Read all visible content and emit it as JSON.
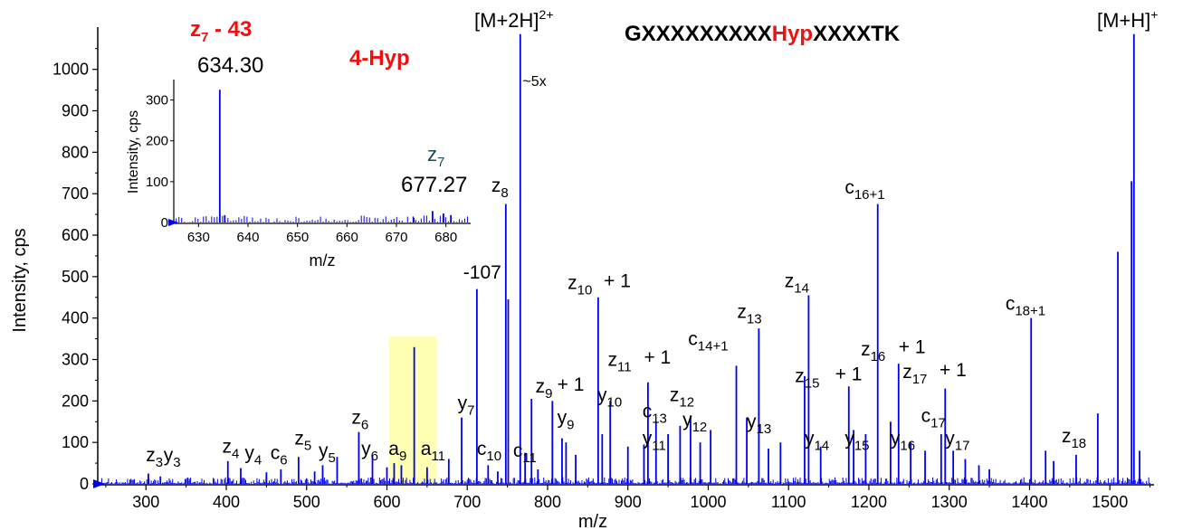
{
  "chart_data": [
    {
      "type": "bar",
      "role": "main-spectrum",
      "xlabel": "m/z",
      "ylabel": "Intensity, cps",
      "xlim": [
        240,
        1555
      ],
      "ylim": [
        0,
        1080
      ],
      "x_ticks": [
        300,
        400,
        500,
        600,
        700,
        800,
        900,
        1000,
        1100,
        1200,
        1300,
        1400,
        1500
      ],
      "y_ticks": [
        0,
        100,
        200,
        300,
        400,
        500,
        600,
        700,
        800,
        900,
        1000
      ],
      "bar_color": "#0000ee",
      "highlight": {
        "x_range": [
          603,
          662
        ],
        "y_top": 355,
        "color": "#ffffb3"
      },
      "peaks": [
        {
          "x": 303,
          "y": 25
        },
        {
          "x": 318,
          "y": 18
        },
        {
          "x": 352,
          "y": 15
        },
        {
          "x": 402,
          "y": 55
        },
        {
          "x": 418,
          "y": 38
        },
        {
          "x": 450,
          "y": 28
        },
        {
          "x": 468,
          "y": 35
        },
        {
          "x": 490,
          "y": 65
        },
        {
          "x": 510,
          "y": 30
        },
        {
          "x": 520,
          "y": 45
        },
        {
          "x": 538,
          "y": 65
        },
        {
          "x": 565,
          "y": 125
        },
        {
          "x": 582,
          "y": 70
        },
        {
          "x": 600,
          "y": 40
        },
        {
          "x": 609,
          "y": 50
        },
        {
          "x": 618,
          "y": 45
        },
        {
          "x": 634,
          "y": 330
        },
        {
          "x": 650,
          "y": 40
        },
        {
          "x": 677,
          "y": 60
        },
        {
          "x": 693,
          "y": 160
        },
        {
          "x": 712,
          "y": 470
        },
        {
          "x": 726,
          "y": 45
        },
        {
          "x": 738,
          "y": 30
        },
        {
          "x": 748,
          "y": 675
        },
        {
          "x": 751,
          "y": 445
        },
        {
          "x": 766,
          "y": 1085
        },
        {
          "x": 772,
          "y": 75
        },
        {
          "x": 780,
          "y": 205
        },
        {
          "x": 788,
          "y": 35
        },
        {
          "x": 806,
          "y": 200
        },
        {
          "x": 818,
          "y": 110
        },
        {
          "x": 823,
          "y": 100
        },
        {
          "x": 835,
          "y": 70
        },
        {
          "x": 863,
          "y": 450
        },
        {
          "x": 868,
          "y": 120
        },
        {
          "x": 878,
          "y": 200
        },
        {
          "x": 900,
          "y": 90
        },
        {
          "x": 920,
          "y": 95
        },
        {
          "x": 925,
          "y": 245
        },
        {
          "x": 935,
          "y": 150
        },
        {
          "x": 950,
          "y": 120
        },
        {
          "x": 965,
          "y": 140
        },
        {
          "x": 978,
          "y": 165
        },
        {
          "x": 990,
          "y": 100
        },
        {
          "x": 1003,
          "y": 130
        },
        {
          "x": 1035,
          "y": 285
        },
        {
          "x": 1048,
          "y": 160
        },
        {
          "x": 1063,
          "y": 375
        },
        {
          "x": 1075,
          "y": 85
        },
        {
          "x": 1090,
          "y": 100
        },
        {
          "x": 1120,
          "y": 260
        },
        {
          "x": 1125,
          "y": 455
        },
        {
          "x": 1140,
          "y": 90
        },
        {
          "x": 1175,
          "y": 235
        },
        {
          "x": 1181,
          "y": 130
        },
        {
          "x": 1196,
          "y": 120
        },
        {
          "x": 1211,
          "y": 675
        },
        {
          "x": 1227,
          "y": 150
        },
        {
          "x": 1237,
          "y": 290
        },
        {
          "x": 1252,
          "y": 100
        },
        {
          "x": 1270,
          "y": 80
        },
        {
          "x": 1290,
          "y": 120
        },
        {
          "x": 1295,
          "y": 230
        },
        {
          "x": 1305,
          "y": 80
        },
        {
          "x": 1320,
          "y": 60
        },
        {
          "x": 1337,
          "y": 45
        },
        {
          "x": 1350,
          "y": 35
        },
        {
          "x": 1402,
          "y": 400
        },
        {
          "x": 1420,
          "y": 80
        },
        {
          "x": 1430,
          "y": 55
        },
        {
          "x": 1458,
          "y": 70
        },
        {
          "x": 1485,
          "y": 170
        },
        {
          "x": 1510,
          "y": 560
        },
        {
          "x": 1527,
          "y": 730
        },
        {
          "x": 1530,
          "y": 1085
        },
        {
          "x": 1537,
          "y": 80
        }
      ],
      "annotations": [
        {
          "label": "z",
          "sub": "3",
          "x": 300,
          "y": 55
        },
        {
          "label": "y",
          "sub": "3",
          "x": 322,
          "y": 55
        },
        {
          "label": "z",
          "sub": "4",
          "x": 395,
          "y": 75
        },
        {
          "label": "y",
          "sub": "4",
          "x": 423,
          "y": 60
        },
        {
          "label": "c",
          "sub": "6",
          "x": 455,
          "y": 60
        },
        {
          "label": "z",
          "sub": "5",
          "x": 485,
          "y": 95
        },
        {
          "label": "y",
          "sub": "5",
          "x": 515,
          "y": 65
        },
        {
          "label": "z",
          "sub": "6",
          "x": 556,
          "y": 145
        },
        {
          "label": "y",
          "sub": "6",
          "x": 568,
          "y": 70
        },
        {
          "label": "a",
          "sub": "9",
          "x": 602,
          "y": 70
        },
        {
          "label": "a",
          "sub": "11",
          "x": 642,
          "y": 70
        },
        {
          "label": "y",
          "sub": "7",
          "x": 688,
          "y": 180
        },
        {
          "label": "-107",
          "sub": "",
          "x": 695,
          "y": 495
        },
        {
          "label": "c",
          "sub": "10",
          "x": 712,
          "y": 70
        },
        {
          "label": "z",
          "sub": "8",
          "x": 730,
          "y": 705
        },
        {
          "label": "c",
          "sub": "11",
          "x": 757,
          "y": 65
        },
        {
          "label": "z",
          "sub": "9",
          "x": 785,
          "y": 220
        },
        {
          "label": "+ 1",
          "sub": "",
          "x": 812,
          "y": 225
        },
        {
          "label": "y",
          "sub": "9",
          "x": 812,
          "y": 145
        },
        {
          "label": "z",
          "sub": "10",
          "x": 825,
          "y": 470
        },
        {
          "label": "+ 1",
          "sub": "",
          "x": 870,
          "y": 475
        },
        {
          "label": "y",
          "sub": "10",
          "x": 862,
          "y": 200
        },
        {
          "label": "z",
          "sub": "11",
          "x": 875,
          "y": 285
        },
        {
          "label": "+ 1",
          "sub": "",
          "x": 920,
          "y": 290
        },
        {
          "label": "c",
          "sub": "13",
          "x": 918,
          "y": 160
        },
        {
          "label": "y",
          "sub": "11",
          "x": 918,
          "y": 95
        },
        {
          "label": "c",
          "sub": "14+1",
          "x": 975,
          "y": 335
        },
        {
          "label": "z",
          "sub": "12",
          "x": 952,
          "y": 200
        },
        {
          "label": "y",
          "sub": "12",
          "x": 968,
          "y": 140
        },
        {
          "label": "z",
          "sub": "13",
          "x": 1036,
          "y": 400
        },
        {
          "label": "y",
          "sub": "13",
          "x": 1048,
          "y": 135
        },
        {
          "label": "z",
          "sub": "14",
          "x": 1095,
          "y": 475
        },
        {
          "label": "z",
          "sub": "15",
          "x": 1108,
          "y": 245
        },
        {
          "label": "+ 1",
          "sub": "",
          "x": 1158,
          "y": 250
        },
        {
          "label": "y",
          "sub": "14",
          "x": 1120,
          "y": 95
        },
        {
          "label": "y",
          "sub": "15",
          "x": 1170,
          "y": 95
        },
        {
          "label": "c",
          "sub": "16+1",
          "x": 1170,
          "y": 700
        },
        {
          "label": "z",
          "sub": "16",
          "x": 1190,
          "y": 310
        },
        {
          "label": "+ 1",
          "sub": "",
          "x": 1237,
          "y": 315
        },
        {
          "label": "y",
          "sub": "16",
          "x": 1227,
          "y": 95
        },
        {
          "label": "z",
          "sub": "17",
          "x": 1242,
          "y": 255
        },
        {
          "label": "+ 1",
          "sub": "",
          "x": 1288,
          "y": 260
        },
        {
          "label": "c",
          "sub": "17",
          "x": 1265,
          "y": 150
        },
        {
          "label": "y",
          "sub": "17",
          "x": 1295,
          "y": 95
        },
        {
          "label": "c",
          "sub": "18+1",
          "x": 1370,
          "y": 420
        },
        {
          "label": "z",
          "sub": "18",
          "x": 1440,
          "y": 100
        },
        {
          "label": "~5x",
          "sub": "",
          "x": 769,
          "y": 960
        }
      ]
    },
    {
      "type": "bar",
      "role": "inset-spectrum",
      "xlabel": "m/z",
      "ylabel": "Intensity, cps",
      "xlim": [
        625,
        685
      ],
      "ylim": [
        0,
        350
      ],
      "x_ticks": [
        630,
        640,
        650,
        660,
        670,
        680
      ],
      "y_ticks": [
        0,
        100,
        200,
        300
      ],
      "bar_color": "#0000ee",
      "peaks": [
        {
          "x": 634.3,
          "y": 325
        },
        {
          "x": 635.3,
          "y": 18
        },
        {
          "x": 677.3,
          "y": 28
        },
        {
          "x": 673.5,
          "y": 12
        },
        {
          "x": 679.5,
          "y": 22
        },
        {
          "x": 681,
          "y": 18
        }
      ],
      "labels": [
        {
          "text": "634.30",
          "x": 634.3,
          "y": 370
        },
        {
          "text": "677.27",
          "x": 677.27,
          "y": 95
        }
      ]
    }
  ],
  "headers": {
    "z7_minus": {
      "base": "z",
      "sub": "7",
      "rest": " - 43",
      "color": "#ee1111"
    },
    "hyp_label": {
      "text": "4-Hyp",
      "color": "#ee1111"
    },
    "z7": {
      "base": "z",
      "sub": "7",
      "color": "#1a4a5a"
    },
    "mz_634": "634.30",
    "mz_677": "677.27",
    "m2h": {
      "base": "[M+2H]",
      "sup": "2+"
    },
    "mh": {
      "base": "[M+H]",
      "sup": "+"
    },
    "sequence": {
      "part1": "GXXXXXXXXX",
      "part2": "Hyp",
      "part3": "XXXXTK",
      "hyp_color": "#ee1111"
    }
  }
}
